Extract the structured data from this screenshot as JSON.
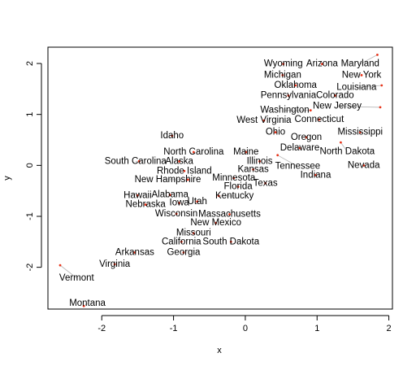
{
  "chart_data": {
    "type": "scatter",
    "xlabel": "x",
    "ylabel": "y",
    "xlim": [
      -2.75,
      2.05
    ],
    "ylim": [
      -2.82,
      2.32
    ],
    "x_ticks": [
      -2,
      -1,
      0,
      1,
      2
    ],
    "y_ticks": [
      -2,
      -1,
      0,
      1,
      2
    ],
    "x_tick_labels": [
      "-2",
      "-1",
      "0",
      "1",
      "2"
    ],
    "y_tick_labels": [
      "-2",
      "-1",
      "0",
      "1",
      "2"
    ],
    "point_color": "#e8341a",
    "leader_color": "#b5b5b5",
    "points": [
      {
        "label": "Montana",
        "x": -2.25,
        "y": -2.76,
        "lx": -2.2,
        "ly": -2.71
      },
      {
        "label": "Vermont",
        "x": -2.58,
        "y": -1.96,
        "lx": -2.35,
        "ly": -2.21
      },
      {
        "label": "Virginia",
        "x": -1.82,
        "y": -1.94,
        "lx": -1.82,
        "ly": -1.94
      },
      {
        "label": "Arkansas",
        "x": -1.54,
        "y": -1.71,
        "lx": -1.54,
        "ly": -1.71
      },
      {
        "label": "Georgia",
        "x": -0.86,
        "y": -1.71,
        "lx": -0.86,
        "ly": -1.71
      },
      {
        "label": "California",
        "x": -0.89,
        "y": -1.5,
        "lx": -0.89,
        "ly": -1.5
      },
      {
        "label": "South Dakota",
        "x": -0.2,
        "y": -1.5,
        "lx": -0.2,
        "ly": -1.5
      },
      {
        "label": "Missouri",
        "x": -0.72,
        "y": -1.33,
        "lx": -0.72,
        "ly": -1.33
      },
      {
        "label": "New Mexico",
        "x": -0.41,
        "y": -1.13,
        "lx": -0.41,
        "ly": -1.13
      },
      {
        "label": "Wisconsin",
        "x": -0.96,
        "y": -0.95,
        "lx": -0.96,
        "ly": -0.95
      },
      {
        "label": "Massachusetts",
        "x": -0.22,
        "y": -0.96,
        "lx": -0.22,
        "ly": -0.96
      },
      {
        "label": "Nebraska",
        "x": -1.39,
        "y": -0.77,
        "lx": -1.39,
        "ly": -0.77
      },
      {
        "label": "Iowa",
        "x": -0.92,
        "y": -0.74,
        "lx": -0.92,
        "ly": -0.74
      },
      {
        "label": "Utah",
        "x": -0.67,
        "y": -0.71,
        "lx": -0.67,
        "ly": -0.71
      },
      {
        "label": "Hawaii",
        "x": -1.5,
        "y": -0.59,
        "lx": -1.5,
        "ly": -0.59
      },
      {
        "label": "Alabama",
        "x": -1.05,
        "y": -0.58,
        "lx": -1.05,
        "ly": -0.58
      },
      {
        "label": "Kentucky",
        "x": -0.37,
        "y": -0.6,
        "lx": -0.15,
        "ly": -0.6
      },
      {
        "label": "Florida",
        "x": -0.1,
        "y": -0.42,
        "lx": -0.1,
        "ly": -0.42
      },
      {
        "label": "Minnesota",
        "x": -0.16,
        "y": -0.25,
        "lx": -0.16,
        "ly": -0.25
      },
      {
        "label": "Texas",
        "x": 0.28,
        "y": -0.35,
        "lx": 0.28,
        "ly": -0.35
      },
      {
        "label": "New Hampshire",
        "x": -0.8,
        "y": -0.28,
        "lx": -1.08,
        "ly": -0.28
      },
      {
        "label": "Rhode Island",
        "x": -0.85,
        "y": -0.11,
        "lx": -0.85,
        "ly": -0.11
      },
      {
        "label": "Kansas",
        "x": 0.11,
        "y": -0.08,
        "lx": 0.11,
        "ly": -0.08
      },
      {
        "label": "Indiana",
        "x": 0.98,
        "y": -0.19,
        "lx": 0.98,
        "ly": -0.19
      },
      {
        "label": "Tennessee",
        "x": 0.45,
        "y": 0.2,
        "lx": 0.73,
        "ly": -0.02
      },
      {
        "label": "South Carolina",
        "x": -1.48,
        "y": 0.08,
        "lx": -1.53,
        "ly": 0.08
      },
      {
        "label": "Alaska",
        "x": -0.92,
        "y": 0.08,
        "lx": -0.92,
        "ly": 0.08
      },
      {
        "label": "Illinois",
        "x": 0.2,
        "y": 0.08,
        "lx": 0.2,
        "ly": 0.08
      },
      {
        "label": "Nevada",
        "x": 1.65,
        "y": 0.0,
        "lx": 1.65,
        "ly": 0.0
      },
      {
        "label": "North Carolina",
        "x": -0.72,
        "y": 0.26,
        "lx": -0.72,
        "ly": 0.26
      },
      {
        "label": "Maine",
        "x": 0.01,
        "y": 0.26,
        "lx": 0.01,
        "ly": 0.26
      },
      {
        "label": "North Dakota",
        "x": 1.33,
        "y": 0.45,
        "lx": 1.42,
        "ly": 0.27
      },
      {
        "label": "Delaware",
        "x": 0.76,
        "y": 0.34,
        "lx": 0.76,
        "ly": 0.34
      },
      {
        "label": "Idaho",
        "x": -1.02,
        "y": 0.58,
        "lx": -1.02,
        "ly": 0.58
      },
      {
        "label": "Ohio",
        "x": 0.42,
        "y": 0.65,
        "lx": 0.42,
        "ly": 0.65
      },
      {
        "label": "Oregon",
        "x": 0.85,
        "y": 0.55,
        "lx": 0.85,
        "ly": 0.55
      },
      {
        "label": "Mississippi",
        "x": 1.6,
        "y": 0.65,
        "lx": 1.6,
        "ly": 0.65
      },
      {
        "label": "West Virginia",
        "x": 0.26,
        "y": 0.88,
        "lx": 0.26,
        "ly": 0.88
      },
      {
        "label": "Connecticut",
        "x": 1.03,
        "y": 0.9,
        "lx": 1.03,
        "ly": 0.9
      },
      {
        "label": "Washington",
        "x": 0.91,
        "y": 1.08,
        "lx": 0.55,
        "ly": 1.08
      },
      {
        "label": "New Jersey",
        "x": 1.88,
        "y": 1.14,
        "lx": 1.28,
        "ly": 1.16
      },
      {
        "label": "Pennsylvania",
        "x": 0.6,
        "y": 1.37,
        "lx": 0.6,
        "ly": 1.37
      },
      {
        "label": "Colorado",
        "x": 1.25,
        "y": 1.37,
        "lx": 1.25,
        "ly": 1.37
      },
      {
        "label": "Oklahoma",
        "x": 0.7,
        "y": 1.57,
        "lx": 0.7,
        "ly": 1.57
      },
      {
        "label": "Louisiana",
        "x": 1.9,
        "y": 1.57,
        "lx": 1.55,
        "ly": 1.53
      },
      {
        "label": "Michigan",
        "x": 0.52,
        "y": 1.77,
        "lx": 0.52,
        "ly": 1.77
      },
      {
        "label": "New York",
        "x": 1.62,
        "y": 1.77,
        "lx": 1.62,
        "ly": 1.77
      },
      {
        "label": "Wyoming",
        "x": 0.53,
        "y": 1.99,
        "lx": 0.53,
        "ly": 1.99
      },
      {
        "label": "Arizona",
        "x": 1.07,
        "y": 1.99,
        "lx": 1.07,
        "ly": 1.99
      },
      {
        "label": "Maryland",
        "x": 1.84,
        "y": 2.17,
        "lx": 1.6,
        "ly": 1.99
      }
    ]
  }
}
